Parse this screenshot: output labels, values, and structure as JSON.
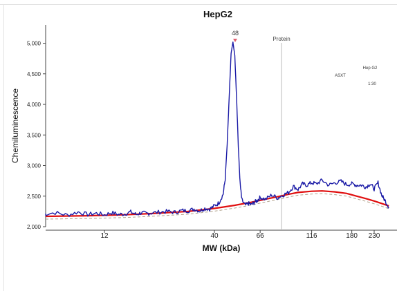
{
  "chart_data": {
    "type": "line",
    "title": "HepG2",
    "xlabel": "MW (kDa)",
    "ylabel": "Chemiluminescence",
    "x_ticks": [
      "12",
      "40",
      "66",
      "116",
      "180",
      "230"
    ],
    "y_ticks": [
      "2,000",
      "2,500",
      "3,000",
      "3,500",
      "4,000",
      "4,500",
      "5,000"
    ],
    "ylim": [
      2000,
      5300
    ],
    "peak_label": "48",
    "marker_label": "Protein",
    "annotations": [
      {
        "text": "Hep G2"
      },
      {
        "text": "ASXT"
      },
      {
        "text": "1:30"
      }
    ],
    "colors": {
      "signal": "#1a1aa6",
      "baseline": "#e01010",
      "baseline_dashed": "#b0a08a",
      "peak_marker": "#e06070",
      "protein_line": "#bbbbbb"
    },
    "x_scale": "log",
    "series": [
      {
        "key": "signal",
        "x": [
          6,
          7,
          8,
          9,
          10,
          11,
          12,
          13,
          14,
          15,
          16,
          17,
          18,
          19,
          20,
          22,
          24,
          26,
          28,
          30,
          32,
          34,
          36,
          38,
          40,
          42,
          44,
          45,
          46,
          47,
          48,
          49,
          50,
          51,
          52,
          53,
          54,
          56,
          58,
          60,
          62,
          64,
          66,
          70,
          75,
          80,
          85,
          90,
          95,
          100,
          105,
          110,
          116,
          122,
          130,
          140,
          150,
          160,
          170,
          180,
          190,
          200,
          210,
          220,
          230,
          240,
          250,
          260,
          270
        ],
        "y": [
          2200,
          2230,
          2190,
          2240,
          2200,
          2220,
          2195,
          2230,
          2200,
          2210,
          2240,
          2200,
          2230,
          2215,
          2225,
          2240,
          2250,
          2235,
          2265,
          2260,
          2290,
          2260,
          2300,
          2290,
          2340,
          2390,
          2530,
          2780,
          3350,
          4100,
          4830,
          5020,
          4800,
          4100,
          3300,
          2700,
          2440,
          2350,
          2380,
          2360,
          2400,
          2430,
          2480,
          2450,
          2520,
          2470,
          2520,
          2560,
          2660,
          2610,
          2700,
          2680,
          2720,
          2700,
          2760,
          2680,
          2720,
          2740,
          2690,
          2700,
          2680,
          2680,
          2650,
          2700,
          2620,
          2720,
          2510,
          2420,
          2320
        ]
      },
      {
        "key": "baseline",
        "x": [
          6,
          10,
          15,
          20,
          30,
          40,
          50,
          60,
          70,
          80,
          90,
          100,
          116,
          130,
          150,
          170,
          190,
          210,
          230,
          250,
          270
        ],
        "y": [
          2170,
          2180,
          2195,
          2215,
          2250,
          2300,
          2350,
          2400,
          2450,
          2490,
          2530,
          2560,
          2580,
          2585,
          2570,
          2545,
          2500,
          2460,
          2420,
          2380,
          2340
        ]
      }
    ]
  }
}
